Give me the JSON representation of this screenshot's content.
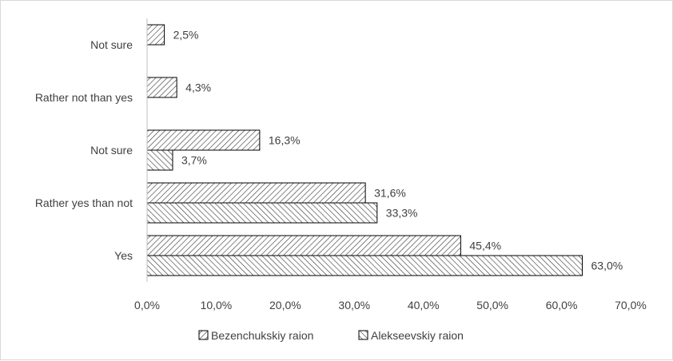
{
  "chart_data": {
    "type": "bar",
    "orientation": "horizontal",
    "categories": [
      "Yes",
      "Rather yes than not",
      "Not sure",
      "Rather not than yes",
      "Not sure"
    ],
    "series": [
      {
        "name": "Bezenchukskiy raion",
        "values": [
          45.4,
          31.6,
          16.3,
          4.3,
          2.5
        ],
        "labels": [
          "45,4%",
          "31,6%",
          "16,3%",
          "4,3%",
          "2,5%"
        ],
        "pattern": "hatch-diagonal-down"
      },
      {
        "name": "Alekseevskiy raion",
        "values": [
          63.0,
          33.3,
          3.7,
          null,
          null
        ],
        "labels": [
          "63,0%",
          "33,3%",
          "3,7%",
          "",
          ""
        ],
        "pattern": "hatch-diagonal-up"
      }
    ],
    "x_ticks": [
      "0,0%",
      "10,0%",
      "20,0%",
      "30,0%",
      "40,0%",
      "50,0%",
      "60,0%",
      "70,0%"
    ],
    "xlim": [
      0,
      70
    ],
    "legend_position": "bottom",
    "grid": false,
    "colors": {
      "bar_stroke": "#000000",
      "hatch": "#404040",
      "text": "#404040",
      "axis": "#bfbfbf"
    }
  }
}
